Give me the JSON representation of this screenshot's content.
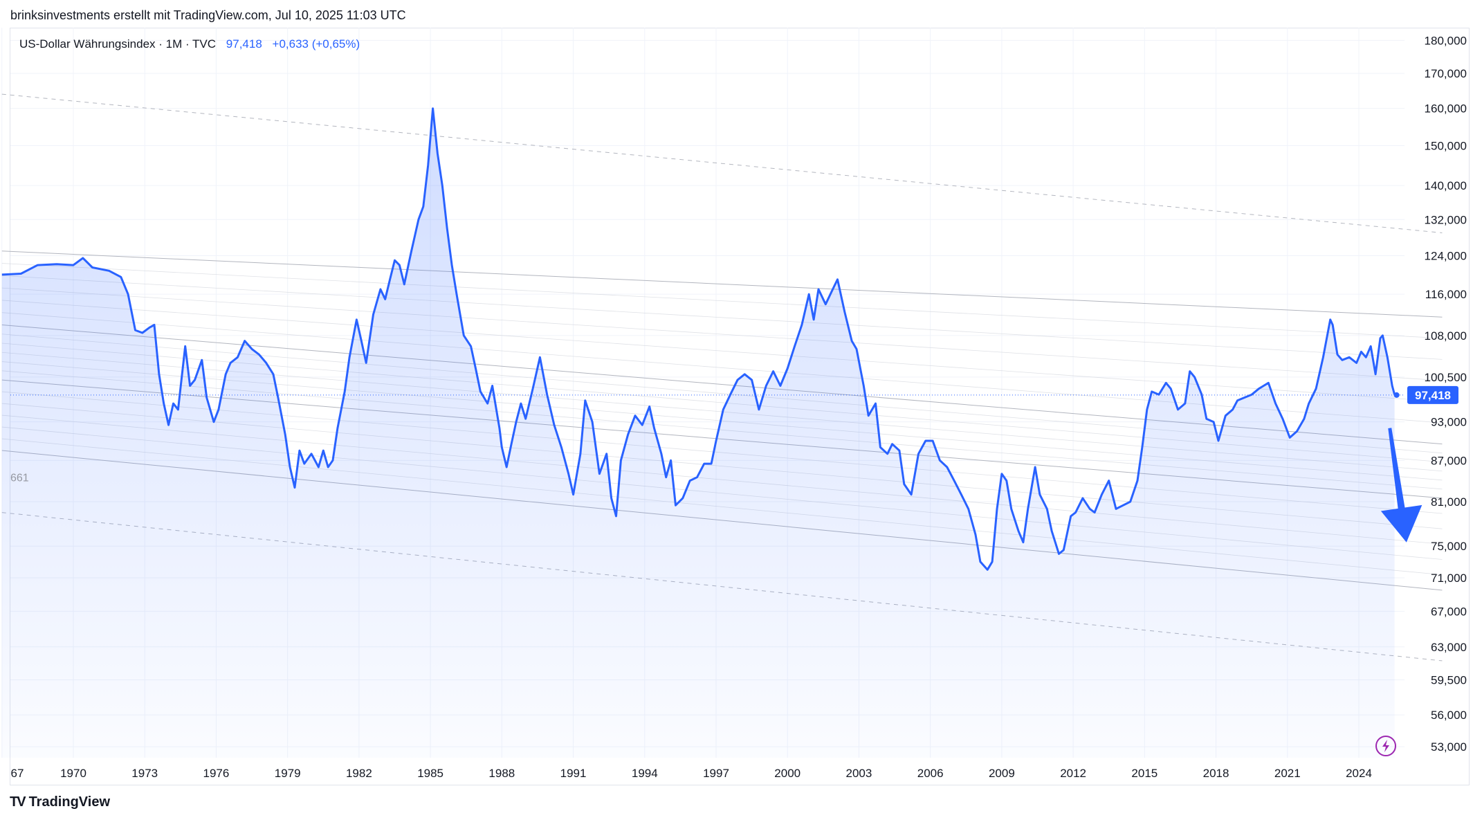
{
  "header": {
    "credit": "brinksinvestments erstellt mit TradingView.com, Jul 10, 2025 11:03 UTC"
  },
  "legend": {
    "symbol": "US-Dollar Währungsindex · 1M · TVC",
    "value": "97,418",
    "change": "+0,633 (+0,65%)"
  },
  "price_axis": {
    "scale": "log",
    "labels": [
      "180,000",
      "170,000",
      "160,000",
      "150,000",
      "140,000",
      "132,000",
      "124,000",
      "116,000",
      "108,000",
      "100,500",
      "93,000",
      "87,000",
      "81,000",
      "75,000",
      "71,000",
      "67,000",
      "63,000",
      "59,500",
      "56,000",
      "53,000"
    ],
    "values": [
      180,
      170,
      160,
      150,
      140,
      132,
      124,
      116,
      108,
      100.5,
      93,
      87,
      81,
      75,
      71,
      67,
      63,
      59.5,
      56,
      53
    ],
    "current_label": "97,418",
    "current_value": 97.418,
    "cut_label": "661"
  },
  "time_axis": {
    "labels": [
      "67",
      "1970",
      "1973",
      "1976",
      "1979",
      "1982",
      "1985",
      "1988",
      "1991",
      "1994",
      "1997",
      "2000",
      "2003",
      "2006",
      "2009",
      "2012",
      "2015",
      "2018",
      "2021",
      "2024"
    ],
    "years": [
      1967,
      1970,
      1973,
      1976,
      1979,
      1982,
      1985,
      1988,
      1991,
      1994,
      1997,
      2000,
      2003,
      2006,
      2009,
      2012,
      2015,
      2018,
      2021,
      2024
    ]
  },
  "chart_data": {
    "type": "area",
    "title": "US-Dollar Währungsindex · 1M · TVC",
    "xlabel": "",
    "ylabel": "",
    "ylim": [
      52,
      184
    ],
    "y_scale": "log",
    "grid": true,
    "series": [
      {
        "name": "",
        "color": "#2962ff",
        "points": [
          [
            1967.0,
            120.0
          ],
          [
            1967.8,
            120.2
          ],
          [
            1968.5,
            122.0
          ],
          [
            1969.3,
            122.2
          ],
          [
            1970.0,
            122.0
          ],
          [
            1970.4,
            123.5
          ],
          [
            1970.8,
            121.5
          ],
          [
            1971.5,
            120.8
          ],
          [
            1972.0,
            119.5
          ],
          [
            1972.3,
            116.0
          ],
          [
            1972.6,
            109.0
          ],
          [
            1972.9,
            108.5
          ],
          [
            1973.2,
            109.5
          ],
          [
            1973.4,
            110.0
          ],
          [
            1973.6,
            101.0
          ],
          [
            1973.8,
            96.0
          ],
          [
            1974.0,
            92.5
          ],
          [
            1974.2,
            96.0
          ],
          [
            1974.4,
            95.0
          ],
          [
            1974.7,
            106.0
          ],
          [
            1974.9,
            99.0
          ],
          [
            1975.1,
            100.0
          ],
          [
            1975.4,
            103.5
          ],
          [
            1975.6,
            97.0
          ],
          [
            1975.9,
            93.0
          ],
          [
            1976.1,
            95.0
          ],
          [
            1976.4,
            101.0
          ],
          [
            1976.6,
            103.0
          ],
          [
            1976.9,
            104.0
          ],
          [
            1977.2,
            107.0
          ],
          [
            1977.5,
            105.5
          ],
          [
            1977.8,
            104.5
          ],
          [
            1978.1,
            103.0
          ],
          [
            1978.4,
            101.0
          ],
          [
            1978.6,
            97.0
          ],
          [
            1978.9,
            91.0
          ],
          [
            1979.1,
            86.0
          ],
          [
            1979.3,
            83.0
          ],
          [
            1979.5,
            88.5
          ],
          [
            1979.7,
            86.5
          ],
          [
            1980.0,
            88.0
          ],
          [
            1980.3,
            86.0
          ],
          [
            1980.5,
            88.5
          ],
          [
            1980.7,
            86.0
          ],
          [
            1980.9,
            87.0
          ],
          [
            1981.1,
            92.0
          ],
          [
            1981.4,
            98.0
          ],
          [
            1981.6,
            104.0
          ],
          [
            1981.9,
            111.0
          ],
          [
            1982.1,
            107.0
          ],
          [
            1982.3,
            103.0
          ],
          [
            1982.6,
            112.0
          ],
          [
            1982.9,
            117.0
          ],
          [
            1983.1,
            115.0
          ],
          [
            1983.3,
            119.0
          ],
          [
            1983.5,
            123.0
          ],
          [
            1983.7,
            122.0
          ],
          [
            1983.9,
            118.0
          ],
          [
            1984.2,
            125.0
          ],
          [
            1984.5,
            132.0
          ],
          [
            1984.7,
            135.0
          ],
          [
            1984.9,
            145.0
          ],
          [
            1985.1,
            160.0
          ],
          [
            1985.3,
            148.0
          ],
          [
            1985.5,
            140.0
          ],
          [
            1985.7,
            130.0
          ],
          [
            1985.9,
            122.0
          ],
          [
            1986.1,
            116.0
          ],
          [
            1986.4,
            108.0
          ],
          [
            1986.7,
            106.0
          ],
          [
            1986.9,
            102.0
          ],
          [
            1987.1,
            98.0
          ],
          [
            1987.4,
            96.0
          ],
          [
            1987.6,
            99.0
          ],
          [
            1987.9,
            92.0
          ],
          [
            1988.0,
            89.0
          ],
          [
            1988.2,
            86.0
          ],
          [
            1988.4,
            89.5
          ],
          [
            1988.6,
            93.0
          ],
          [
            1988.8,
            96.0
          ],
          [
            1989.0,
            93.5
          ],
          [
            1989.3,
            98.5
          ],
          [
            1989.6,
            104.0
          ],
          [
            1989.9,
            97.5
          ],
          [
            1990.2,
            92.5
          ],
          [
            1990.5,
            89.0
          ],
          [
            1990.8,
            85.0
          ],
          [
            1991.0,
            82.0
          ],
          [
            1991.3,
            88.0
          ],
          [
            1991.5,
            96.5
          ],
          [
            1991.8,
            93.0
          ],
          [
            1992.1,
            85.0
          ],
          [
            1992.4,
            88.0
          ],
          [
            1992.6,
            81.5
          ],
          [
            1992.8,
            79.0
          ],
          [
            1993.0,
            87.0
          ],
          [
            1993.3,
            91.0
          ],
          [
            1993.6,
            94.0
          ],
          [
            1993.9,
            92.5
          ],
          [
            1994.2,
            95.5
          ],
          [
            1994.4,
            92.0
          ],
          [
            1994.7,
            88.0
          ],
          [
            1994.9,
            84.5
          ],
          [
            1995.1,
            87.0
          ],
          [
            1995.3,
            80.5
          ],
          [
            1995.6,
            81.5
          ],
          [
            1995.9,
            84.0
          ],
          [
            1996.2,
            84.5
          ],
          [
            1996.5,
            86.5
          ],
          [
            1996.8,
            86.5
          ],
          [
            1997.0,
            90.0
          ],
          [
            1997.3,
            95.0
          ],
          [
            1997.6,
            97.5
          ],
          [
            1997.9,
            100.0
          ],
          [
            1998.2,
            101.0
          ],
          [
            1998.5,
            100.0
          ],
          [
            1998.8,
            95.0
          ],
          [
            1999.1,
            99.0
          ],
          [
            1999.4,
            101.5
          ],
          [
            1999.7,
            99.0
          ],
          [
            2000.0,
            102.0
          ],
          [
            2000.3,
            106.0
          ],
          [
            2000.6,
            110.0
          ],
          [
            2000.9,
            116.0
          ],
          [
            2001.1,
            111.0
          ],
          [
            2001.3,
            117.0
          ],
          [
            2001.6,
            114.0
          ],
          [
            2001.9,
            117.0
          ],
          [
            2002.1,
            119.0
          ],
          [
            2002.4,
            112.5
          ],
          [
            2002.7,
            107.0
          ],
          [
            2002.9,
            105.5
          ],
          [
            2003.2,
            99.0
          ],
          [
            2003.4,
            94.0
          ],
          [
            2003.7,
            96.0
          ],
          [
            2003.9,
            89.0
          ],
          [
            2004.2,
            88.0
          ],
          [
            2004.4,
            89.5
          ],
          [
            2004.7,
            88.5
          ],
          [
            2004.9,
            83.5
          ],
          [
            2005.2,
            82.0
          ],
          [
            2005.5,
            88.0
          ],
          [
            2005.8,
            90.0
          ],
          [
            2006.1,
            90.0
          ],
          [
            2006.4,
            87.0
          ],
          [
            2006.7,
            86.0
          ],
          [
            2007.0,
            84.0
          ],
          [
            2007.3,
            82.0
          ],
          [
            2007.6,
            80.0
          ],
          [
            2007.9,
            76.5
          ],
          [
            2008.1,
            73.0
          ],
          [
            2008.4,
            72.0
          ],
          [
            2008.6,
            73.0
          ],
          [
            2008.8,
            80.0
          ],
          [
            2009.0,
            85.0
          ],
          [
            2009.2,
            84.0
          ],
          [
            2009.4,
            80.0
          ],
          [
            2009.7,
            77.0
          ],
          [
            2009.9,
            75.5
          ],
          [
            2010.1,
            80.0
          ],
          [
            2010.4,
            86.0
          ],
          [
            2010.6,
            82.0
          ],
          [
            2010.9,
            80.0
          ],
          [
            2011.1,
            77.0
          ],
          [
            2011.4,
            74.0
          ],
          [
            2011.6,
            74.5
          ],
          [
            2011.9,
            79.0
          ],
          [
            2012.1,
            79.5
          ],
          [
            2012.4,
            81.5
          ],
          [
            2012.7,
            80.0
          ],
          [
            2012.9,
            79.5
          ],
          [
            2013.2,
            82.0
          ],
          [
            2013.5,
            84.0
          ],
          [
            2013.8,
            80.0
          ],
          [
            2014.1,
            80.5
          ],
          [
            2014.4,
            81.0
          ],
          [
            2014.7,
            84.0
          ],
          [
            2014.9,
            89.0
          ],
          [
            2015.1,
            95.0
          ],
          [
            2015.3,
            98.0
          ],
          [
            2015.6,
            97.5
          ],
          [
            2015.9,
            99.5
          ],
          [
            2016.1,
            98.5
          ],
          [
            2016.4,
            95.0
          ],
          [
            2016.7,
            96.0
          ],
          [
            2016.9,
            101.5
          ],
          [
            2017.1,
            100.5
          ],
          [
            2017.4,
            97.5
          ],
          [
            2017.6,
            93.5
          ],
          [
            2017.9,
            93.0
          ],
          [
            2018.1,
            90.0
          ],
          [
            2018.4,
            94.0
          ],
          [
            2018.7,
            95.0
          ],
          [
            2018.9,
            96.5
          ],
          [
            2019.2,
            97.0
          ],
          [
            2019.5,
            97.5
          ],
          [
            2019.8,
            98.5
          ],
          [
            2020.0,
            99.0
          ],
          [
            2020.2,
            99.5
          ],
          [
            2020.5,
            96.0
          ],
          [
            2020.8,
            93.5
          ],
          [
            2021.1,
            90.5
          ],
          [
            2021.4,
            91.5
          ],
          [
            2021.7,
            93.5
          ],
          [
            2021.9,
            96.0
          ],
          [
            2022.2,
            98.5
          ],
          [
            2022.5,
            104.0
          ],
          [
            2022.8,
            111.0
          ],
          [
            2022.9,
            110.0
          ],
          [
            2023.1,
            104.5
          ],
          [
            2023.3,
            103.5
          ],
          [
            2023.6,
            104.0
          ],
          [
            2023.9,
            103.0
          ],
          [
            2024.1,
            105.0
          ],
          [
            2024.3,
            104.0
          ],
          [
            2024.5,
            106.0
          ],
          [
            2024.7,
            101.0
          ],
          [
            2024.9,
            107.5
          ],
          [
            2025.0,
            108.0
          ],
          [
            2025.2,
            104.0
          ],
          [
            2025.4,
            99.0
          ],
          [
            2025.5,
            97.5
          ]
        ]
      }
    ],
    "channel": {
      "solid": [
        [
          [
            1967.0,
            125.0
          ],
          [
            2027.5,
            111.5
          ]
        ],
        [
          [
            1967.0,
            110.0
          ],
          [
            2027.5,
            89.5
          ]
        ],
        [
          [
            1967.0,
            100.0
          ],
          [
            2027.5,
            81.5
          ]
        ],
        [
          [
            1967.0,
            88.5
          ],
          [
            2027.5,
            69.5
          ]
        ]
      ],
      "dashed": [
        [
          [
            1967.0,
            164.0
          ],
          [
            2027.5,
            129.0
          ]
        ],
        [
          [
            1967.0,
            79.5
          ],
          [
            2027.5,
            61.5
          ]
        ]
      ]
    },
    "annotations": [
      {
        "type": "arrow",
        "direction": "down",
        "color": "#2962ff",
        "from": [
          2025.3,
          92.0
        ],
        "to": [
          2026.0,
          75.5
        ]
      }
    ]
  },
  "colors": {
    "accent": "#2962ff",
    "grid": "#f0f3fa",
    "text": "#131722"
  },
  "footer": {
    "brand": "TradingView",
    "logo": "TV"
  },
  "icons": {
    "lightning": "lightning-icon"
  }
}
